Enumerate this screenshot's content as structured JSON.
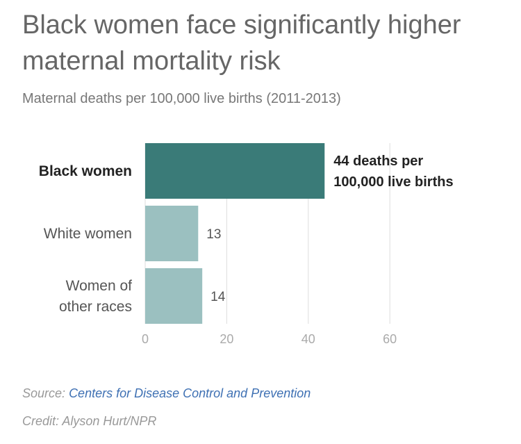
{
  "title": "Black women face significantly higher maternal mortality risk",
  "subtitle": "Maternal deaths per 100,000 live births (2011-2013)",
  "source": {
    "prefix": "Source:",
    "link_text": "Centers for Disease Control and Prevention"
  },
  "credit": "Credit: Alyson Hurt/NPR",
  "colors": {
    "highlight_bar": "#3a7b78",
    "other_bar": "#9bc0c0",
    "grid": "#dddddd",
    "tick_text": "#aaaaaa",
    "label_text": "#555555",
    "highlight_text": "#222222"
  },
  "chart_data": {
    "type": "bar",
    "orientation": "horizontal",
    "categories": [
      [
        "Black women"
      ],
      [
        "White women"
      ],
      [
        "Women of",
        "other races"
      ]
    ],
    "values": [
      44,
      13,
      14
    ],
    "value_labels": [
      [
        "44 deaths per",
        "100,000 live births"
      ],
      [
        "13"
      ],
      [
        "14"
      ]
    ],
    "highlight_index": 0,
    "xlim": [
      0,
      60
    ],
    "xticks": [
      "0",
      "20",
      "40",
      "60"
    ],
    "grid": true
  }
}
